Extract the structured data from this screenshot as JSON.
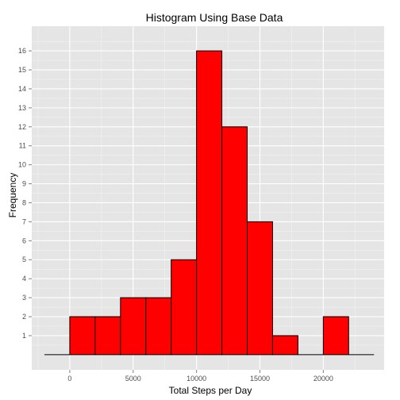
{
  "chart_data": {
    "type": "bar",
    "title": "Histogram Using Base Data",
    "xlabel": "Total Steps per Day",
    "ylabel": "Frequency",
    "bin_width": 2000,
    "bins": [
      {
        "start": -2000,
        "end": 0,
        "count": 0
      },
      {
        "start": 0,
        "end": 2000,
        "count": 2
      },
      {
        "start": 2000,
        "end": 4000,
        "count": 2
      },
      {
        "start": 4000,
        "end": 6000,
        "count": 3
      },
      {
        "start": 6000,
        "end": 8000,
        "count": 3
      },
      {
        "start": 8000,
        "end": 10000,
        "count": 5
      },
      {
        "start": 10000,
        "end": 12000,
        "count": 16
      },
      {
        "start": 12000,
        "end": 14000,
        "count": 12
      },
      {
        "start": 14000,
        "end": 16000,
        "count": 7
      },
      {
        "start": 16000,
        "end": 18000,
        "count": 1
      },
      {
        "start": 18000,
        "end": 20000,
        "count": 0
      },
      {
        "start": 20000,
        "end": 22000,
        "count": 2
      },
      {
        "start": 22000,
        "end": 24000,
        "count": 0
      }
    ],
    "x_ticks": [
      0,
      5000,
      10000,
      15000,
      20000
    ],
    "y_ticks": [
      1,
      2,
      3,
      4,
      5,
      6,
      7,
      8,
      9,
      10,
      11,
      12,
      13,
      14,
      15,
      16
    ],
    "xlim": [
      -3000,
      24800
    ],
    "ylim": [
      -0.8,
      17.3
    ],
    "grid": true,
    "legend": "none",
    "colors": {
      "bar_fill": "#ff0000",
      "bar_outline": "#000000",
      "panel_bg": "#e5e5e5",
      "grid_major": "#ffffff",
      "grid_minor": "#f2f2f2"
    }
  }
}
